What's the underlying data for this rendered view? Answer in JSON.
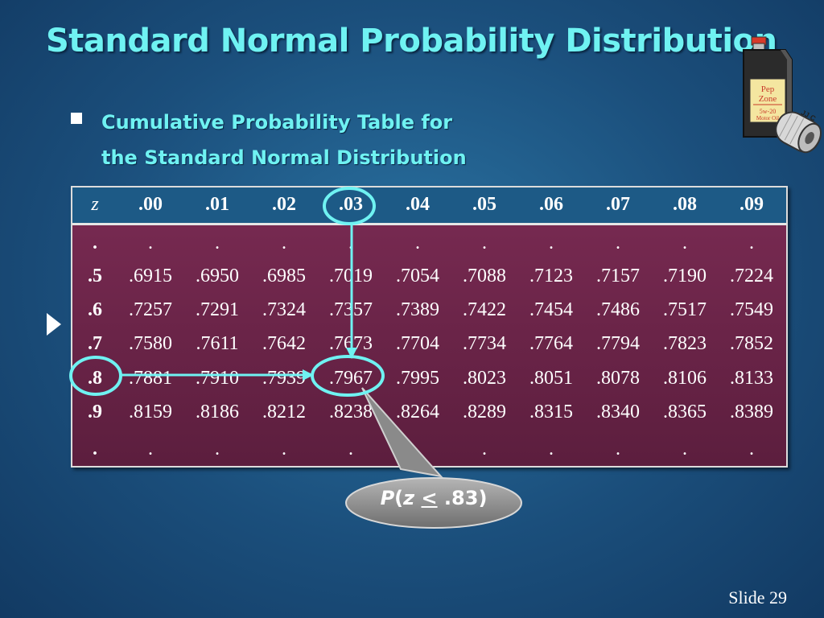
{
  "title": "Standard Normal Probability Distribution",
  "bullet": {
    "line1": "Cumulative Probability Table for",
    "line2": "the Standard Normal Distribution"
  },
  "table": {
    "z_header": "z",
    "columns": [
      ".00",
      ".01",
      ".02",
      ".03",
      ".04",
      ".05",
      ".06",
      ".07",
      ".08",
      ".09"
    ],
    "rows": [
      {
        "z": ".",
        "values": [
          ".",
          ".",
          ".",
          ".",
          ".",
          ".",
          ".",
          ".",
          ".",
          "."
        ]
      },
      {
        "z": ".5",
        "values": [
          ".6915",
          ".6950",
          ".6985",
          ".7019",
          ".7054",
          ".7088",
          ".7123",
          ".7157",
          ".7190",
          ".7224"
        ]
      },
      {
        "z": ".6",
        "values": [
          ".7257",
          ".7291",
          ".7324",
          ".7357",
          ".7389",
          ".7422",
          ".7454",
          ".7486",
          ".7517",
          ".7549"
        ]
      },
      {
        "z": ".7",
        "values": [
          ".7580",
          ".7611",
          ".7642",
          ".7673",
          ".7704",
          ".7734",
          ".7764",
          ".7794",
          ".7823",
          ".7852"
        ]
      },
      {
        "z": ".8",
        "values": [
          ".7881",
          ".7910",
          ".7939",
          ".7967",
          ".7995",
          ".8023",
          ".8051",
          ".8078",
          ".8106",
          ".8133"
        ]
      },
      {
        "z": ".9",
        "values": [
          ".8159",
          ".8186",
          ".8212",
          ".8238",
          ".8264",
          ".8289",
          ".8315",
          ".8340",
          ".8365",
          ".8389"
        ]
      },
      {
        "z": ".",
        "values": [
          ".",
          ".",
          ".",
          ".",
          ".",
          ".",
          ".",
          ".",
          ".",
          "."
        ]
      }
    ]
  },
  "callout": {
    "p": "P",
    "open": "(",
    "z": "z",
    "le": "<",
    "value": " .83)"
  },
  "slide_number": "Slide 29",
  "logo": {
    "line1": "Pep",
    "line2": "Zone",
    "line3": "5w-20",
    "line4": "Motor Oil",
    "filter": "JJ C"
  },
  "colors": {
    "title": "#6ff2f2",
    "highlight": "#6ff2f2",
    "table_bg": "#6b2449",
    "header_bg": "#1d5a86"
  }
}
